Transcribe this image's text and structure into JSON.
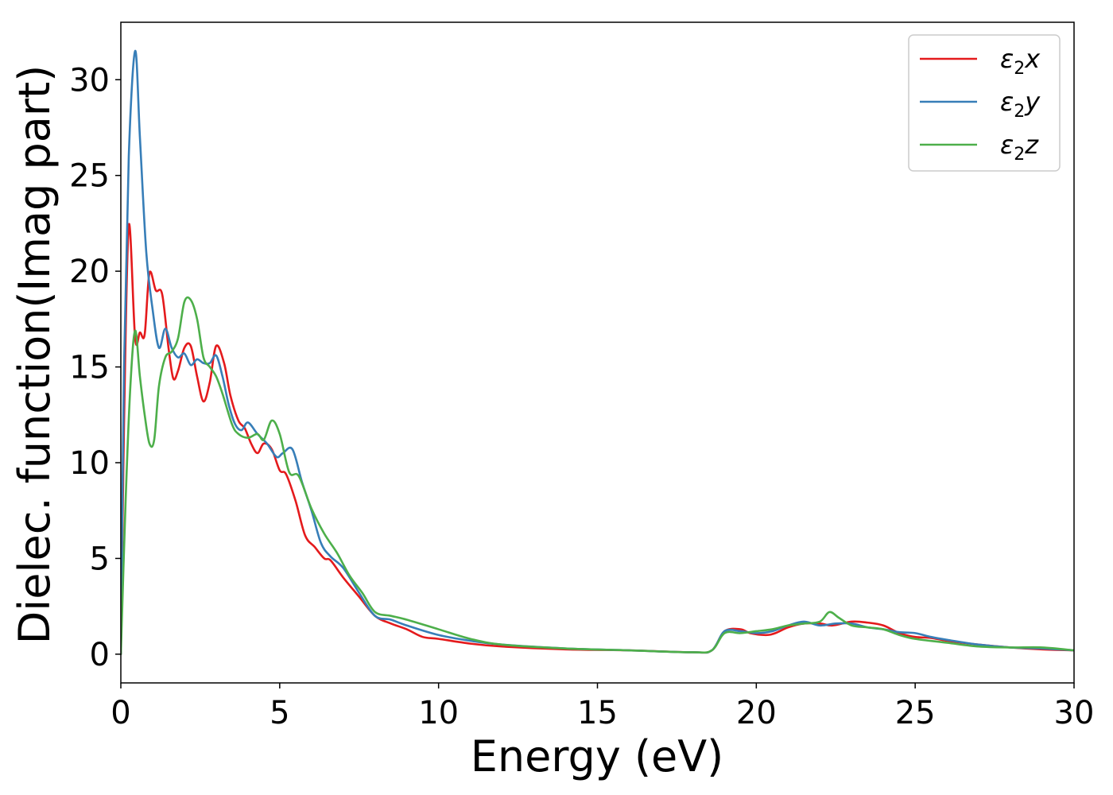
{
  "chart_data": {
    "type": "line",
    "title": "",
    "xlabel": "Energy (eV)",
    "ylabel": "Dielec. function(Imag part)",
    "xlim": [
      0,
      30
    ],
    "ylim": [
      -1.5,
      33
    ],
    "xticks": [
      0,
      5,
      10,
      15,
      20,
      25,
      30
    ],
    "yticks": [
      0,
      5,
      10,
      15,
      20,
      25,
      30
    ],
    "grid": false,
    "legend_position": "top-right",
    "series": [
      {
        "name": "ε2x",
        "legend_base": "ε",
        "legend_sub": "2",
        "legend_var": "x",
        "color": "#e41a1c",
        "x": [
          0,
          0.1,
          0.25,
          0.45,
          0.6,
          0.75,
          0.9,
          1.1,
          1.3,
          1.5,
          1.65,
          1.8,
          2.0,
          2.2,
          2.4,
          2.6,
          2.8,
          3.0,
          3.25,
          3.45,
          3.7,
          3.9,
          4.1,
          4.3,
          4.5,
          4.75,
          5.0,
          5.2,
          5.5,
          5.8,
          6.1,
          6.4,
          6.6,
          7.0,
          7.5,
          8.0,
          8.5,
          9.0,
          9.5,
          10.0,
          11.0,
          12.0,
          14.0,
          16.0,
          18.0,
          18.6,
          19.0,
          19.5,
          19.8,
          20.3,
          20.6,
          21.0,
          21.5,
          22.0,
          22.4,
          23.0,
          23.5,
          24.0,
          24.5,
          25.0,
          25.5,
          26.0,
          27.0,
          28.0,
          29.0,
          30.0
        ],
        "values": [
          0,
          12,
          22.4,
          16.5,
          16.8,
          16.7,
          19.9,
          19.0,
          18.8,
          16.0,
          14.4,
          14.8,
          16.0,
          16.1,
          14.5,
          13.2,
          14.2,
          16.1,
          15.2,
          13.5,
          12.2,
          11.8,
          11.0,
          10.5,
          11.0,
          10.7,
          9.6,
          9.4,
          8.0,
          6.2,
          5.6,
          5.0,
          4.9,
          4.0,
          3.0,
          2.0,
          1.6,
          1.3,
          0.9,
          0.8,
          0.55,
          0.4,
          0.25,
          0.2,
          0.1,
          0.2,
          1.2,
          1.3,
          1.1,
          1.0,
          1.1,
          1.4,
          1.6,
          1.6,
          1.5,
          1.7,
          1.65,
          1.5,
          1.1,
          0.9,
          0.85,
          0.7,
          0.5,
          0.35,
          0.25,
          0.2
        ]
      },
      {
        "name": "ε2y",
        "legend_base": "ε",
        "legend_sub": "2",
        "legend_var": "y",
        "color": "#377eb8",
        "x": [
          0,
          0.1,
          0.25,
          0.45,
          0.6,
          0.8,
          1.0,
          1.2,
          1.4,
          1.6,
          1.8,
          2.0,
          2.2,
          2.4,
          2.6,
          2.8,
          3.0,
          3.2,
          3.4,
          3.6,
          3.8,
          4.0,
          4.3,
          4.6,
          4.9,
          5.1,
          5.4,
          5.7,
          6.0,
          6.3,
          6.6,
          7.0,
          7.5,
          8.0,
          8.5,
          9.0,
          10.0,
          11.0,
          12.0,
          14.0,
          16.0,
          18.0,
          18.6,
          19.0,
          19.5,
          20.0,
          20.5,
          21.0,
          21.5,
          22.0,
          22.5,
          23.0,
          23.5,
          24.0,
          24.5,
          25.0,
          25.5,
          26.0,
          27.0,
          28.0,
          29.0,
          30.0
        ],
        "values": [
          0,
          15,
          26,
          31.5,
          27,
          21,
          18,
          16.0,
          17.0,
          16.0,
          15.5,
          15.7,
          15.1,
          15.4,
          15.2,
          15.2,
          15.6,
          14.5,
          13.0,
          12.0,
          11.7,
          12.1,
          11.5,
          11.0,
          10.3,
          10.5,
          10.7,
          9.0,
          7.5,
          5.8,
          5.1,
          4.5,
          3.2,
          2.0,
          1.8,
          1.5,
          1.0,
          0.7,
          0.5,
          0.3,
          0.2,
          0.1,
          0.2,
          1.2,
          1.2,
          1.1,
          1.2,
          1.5,
          1.7,
          1.5,
          1.6,
          1.6,
          1.4,
          1.3,
          1.15,
          1.1,
          0.9,
          0.75,
          0.5,
          0.35,
          0.3,
          0.2
        ]
      },
      {
        "name": "ε2z",
        "legend_base": "ε",
        "legend_sub": "2",
        "legend_var": "z",
        "color": "#4daf4a",
        "x": [
          0,
          0.15,
          0.3,
          0.45,
          0.6,
          0.75,
          0.9,
          1.05,
          1.2,
          1.4,
          1.6,
          1.8,
          2.0,
          2.2,
          2.4,
          2.6,
          2.8,
          3.0,
          3.2,
          3.5,
          3.7,
          4.0,
          4.3,
          4.5,
          4.75,
          5.0,
          5.3,
          5.6,
          6.0,
          6.4,
          6.8,
          7.2,
          7.6,
          8.0,
          8.5,
          9.0,
          10.0,
          11.0,
          12.0,
          14.0,
          16.0,
          18.0,
          18.6,
          19.0,
          19.5,
          20.0,
          20.5,
          21.0,
          21.5,
          22.0,
          22.3,
          22.6,
          23.0,
          23.5,
          24.0,
          24.5,
          25.0,
          26.0,
          27.0,
          28.0,
          29.0,
          30.0
        ],
        "values": [
          0,
          8,
          14,
          16.9,
          14.5,
          12.5,
          11.0,
          11.2,
          14.0,
          15.5,
          15.8,
          16.5,
          18.4,
          18.5,
          17.5,
          15.5,
          15.0,
          14.5,
          13.6,
          12.0,
          11.5,
          11.3,
          11.5,
          11.2,
          12.2,
          11.5,
          9.5,
          9.3,
          7.6,
          6.3,
          5.3,
          4.1,
          3.2,
          2.2,
          2.0,
          1.8,
          1.3,
          0.8,
          0.5,
          0.3,
          0.2,
          0.1,
          0.2,
          1.1,
          1.1,
          1.2,
          1.3,
          1.5,
          1.6,
          1.7,
          2.2,
          1.9,
          1.5,
          1.4,
          1.3,
          1.0,
          0.8,
          0.6,
          0.4,
          0.35,
          0.35,
          0.2
        ]
      }
    ]
  }
}
